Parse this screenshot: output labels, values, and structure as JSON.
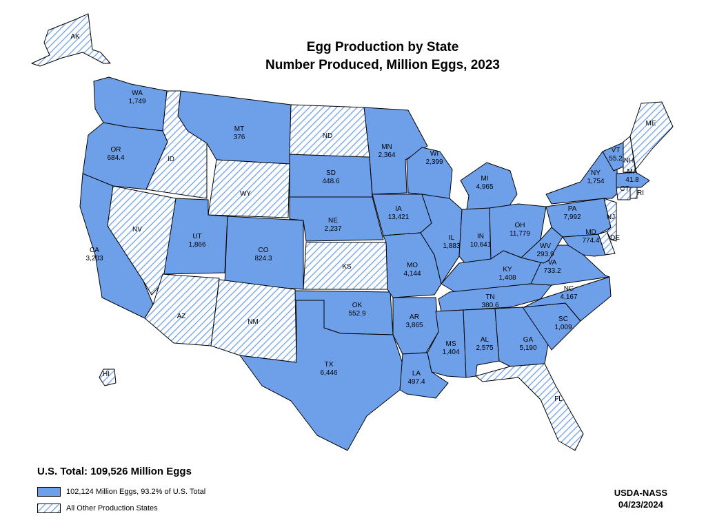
{
  "title": "Egg Production by State",
  "subtitle": "Number Produced, Million Eggs, 2023",
  "us_total": "U.S. Total: 109,526 Million Eggs",
  "legend": {
    "shown": "102,124 Million Eggs, 93.2% of U.S. Total",
    "other": "All Other Production States"
  },
  "source": "USDA-NASS",
  "date": "04/23/2024",
  "colors": {
    "shown": "#6ea0ea",
    "hatch": "#6ea0ea",
    "border": "#000000",
    "background": "#ffffff"
  },
  "states": [
    {
      "abbr": "WA",
      "value": "1,749"
    },
    {
      "abbr": "OR",
      "value": "684.4"
    },
    {
      "abbr": "CA",
      "value": "3,203"
    },
    {
      "abbr": "MT",
      "value": "376"
    },
    {
      "abbr": "SD",
      "value": "448.6"
    },
    {
      "abbr": "NE",
      "value": "2,237"
    },
    {
      "abbr": "UT",
      "value": "1,866"
    },
    {
      "abbr": "CO",
      "value": "824.3"
    },
    {
      "abbr": "OK",
      "value": "552.9"
    },
    {
      "abbr": "TX",
      "value": "6,446"
    },
    {
      "abbr": "MN",
      "value": "2,364"
    },
    {
      "abbr": "IA",
      "value": "13,421"
    },
    {
      "abbr": "MO",
      "value": "4,144"
    },
    {
      "abbr": "AR",
      "value": "3,865"
    },
    {
      "abbr": "LA",
      "value": "497.4"
    },
    {
      "abbr": "WI",
      "value": "2,399"
    },
    {
      "abbr": "IL",
      "value": "1,883"
    },
    {
      "abbr": "MI",
      "value": "4,965"
    },
    {
      "abbr": "IN",
      "value": "10,641"
    },
    {
      "abbr": "OH",
      "value": "11,779"
    },
    {
      "abbr": "KY",
      "value": "1,408"
    },
    {
      "abbr": "TN",
      "value": "380.6"
    },
    {
      "abbr": "MS",
      "value": "1,404"
    },
    {
      "abbr": "AL",
      "value": "2,575"
    },
    {
      "abbr": "GA",
      "value": "5,190"
    },
    {
      "abbr": "SC",
      "value": "1,009"
    },
    {
      "abbr": "NC",
      "value": "4,167"
    },
    {
      "abbr": "VA",
      "value": "733.2"
    },
    {
      "abbr": "WV",
      "value": "293.9"
    },
    {
      "abbr": "MD",
      "value": "774.4"
    },
    {
      "abbr": "PA",
      "value": "7,992"
    },
    {
      "abbr": "NY",
      "value": "1,754"
    },
    {
      "abbr": "VT",
      "value": "55.2"
    },
    {
      "abbr": "MA",
      "value": "41.8"
    },
    {
      "abbr": "ID",
      "value": ""
    },
    {
      "abbr": "NV",
      "value": ""
    },
    {
      "abbr": "AZ",
      "value": ""
    },
    {
      "abbr": "NM",
      "value": ""
    },
    {
      "abbr": "WY",
      "value": ""
    },
    {
      "abbr": "ND",
      "value": ""
    },
    {
      "abbr": "KS",
      "value": ""
    },
    {
      "abbr": "FL",
      "value": ""
    },
    {
      "abbr": "ME",
      "value": ""
    },
    {
      "abbr": "NH",
      "value": ""
    },
    {
      "abbr": "CT",
      "value": ""
    },
    {
      "abbr": "RI",
      "value": ""
    },
    {
      "abbr": "NJ",
      "value": ""
    },
    {
      "abbr": "DE",
      "value": ""
    },
    {
      "abbr": "AK",
      "value": ""
    },
    {
      "abbr": "HI",
      "value": ""
    }
  ]
}
